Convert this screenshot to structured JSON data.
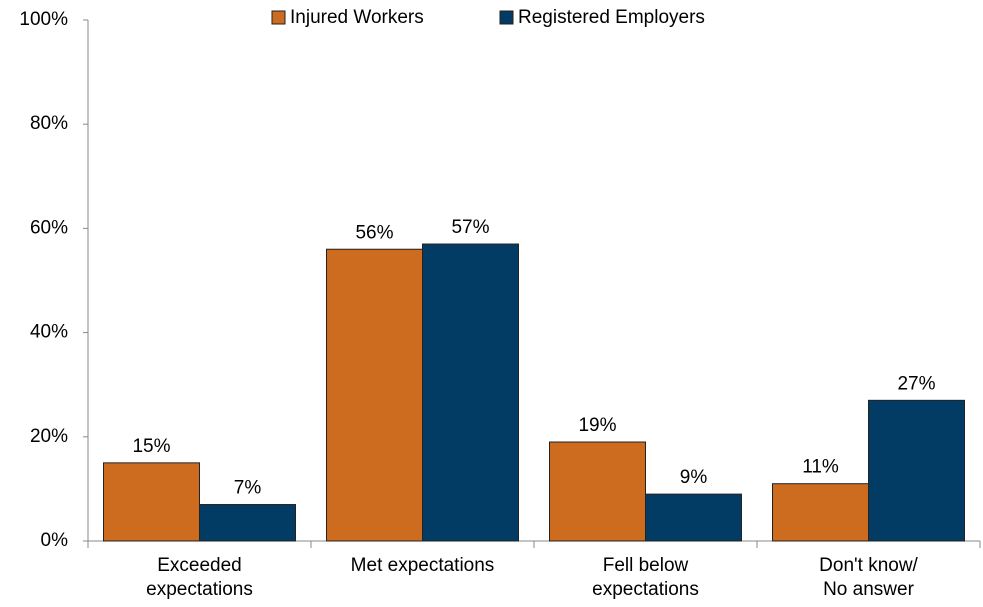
{
  "chart_data": {
    "type": "bar",
    "categories": [
      [
        "Exceeded",
        "expectations"
      ],
      [
        "Met expectations"
      ],
      [
        "Fell below",
        "expectations"
      ],
      [
        "Don't know/",
        "No answer"
      ]
    ],
    "series": [
      {
        "name": "Injured Workers",
        "color": "#cd6c1f",
        "values": [
          15,
          56,
          19,
          11
        ],
        "value_labels": [
          "15%",
          "56%",
          "19%",
          "11%"
        ]
      },
      {
        "name": "Registered Employers",
        "color": "#023b64",
        "values": [
          7,
          57,
          9,
          27
        ],
        "value_labels": [
          "7%",
          "57%",
          "9%",
          "27%"
        ]
      }
    ],
    "ylim": [
      0,
      100
    ],
    "yticks": [
      {
        "value": 0,
        "label": "0%"
      },
      {
        "value": 20,
        "label": "20%"
      },
      {
        "value": 40,
        "label": "40%"
      },
      {
        "value": 60,
        "label": "60%"
      },
      {
        "value": 80,
        "label": "80%"
      },
      {
        "value": 100,
        "label": "100%"
      }
    ],
    "grid": false,
    "legend": "top"
  }
}
